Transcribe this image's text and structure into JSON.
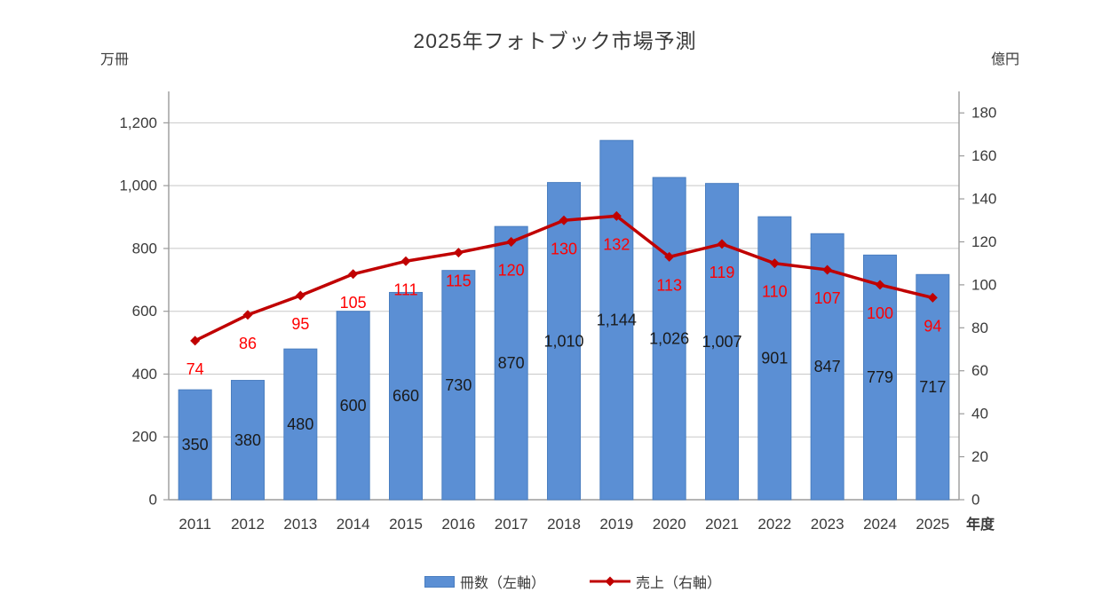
{
  "chart_data": {
    "type": "bar",
    "combo": "bar + line, dual axis",
    "title": "2025年フォトブック市場予測",
    "categories": [
      "2011",
      "2012",
      "2013",
      "2014",
      "2015",
      "2016",
      "2017",
      "2018",
      "2019",
      "2020",
      "2021",
      "2022",
      "2023",
      "2024",
      "2025"
    ],
    "series": [
      {
        "name": "冊数（左軸）",
        "type": "bar",
        "axis": "left",
        "color": "#5B8FD4",
        "border_color": "#4A7EC0",
        "label_color": "#1a1a1a",
        "values": [
          350,
          380,
          480,
          600,
          660,
          730,
          870,
          1010,
          1144,
          1026,
          1007,
          901,
          847,
          779,
          717
        ]
      },
      {
        "name": "売上（右軸）",
        "type": "line",
        "axis": "right",
        "color": "#C00000",
        "marker": "diamond",
        "label_color": "#FF0000",
        "values": [
          74,
          86,
          95,
          105,
          111,
          115,
          120,
          130,
          132,
          113,
          119,
          110,
          107,
          100,
          94
        ]
      }
    ],
    "xlabel": "年度",
    "left_axis": {
      "unit": "万冊",
      "ticks": [
        0,
        200,
        400,
        600,
        800,
        1000,
        1200
      ],
      "lim": [
        0,
        1300
      ]
    },
    "right_axis": {
      "unit": "億円",
      "ticks": [
        0,
        20,
        40,
        60,
        80,
        100,
        120,
        140,
        160,
        180
      ],
      "lim": [
        0,
        190
      ]
    },
    "grid": true,
    "legend_position": "bottom",
    "data_labels": true
  },
  "colors": {
    "background": "#ffffff",
    "grid": "#c8c8c8",
    "axis_line": "#9b9b9b",
    "tick_text": "#3a3a3a",
    "bar": "#5B8FD4",
    "line": "#C00000",
    "line_label": "#FF0000"
  }
}
